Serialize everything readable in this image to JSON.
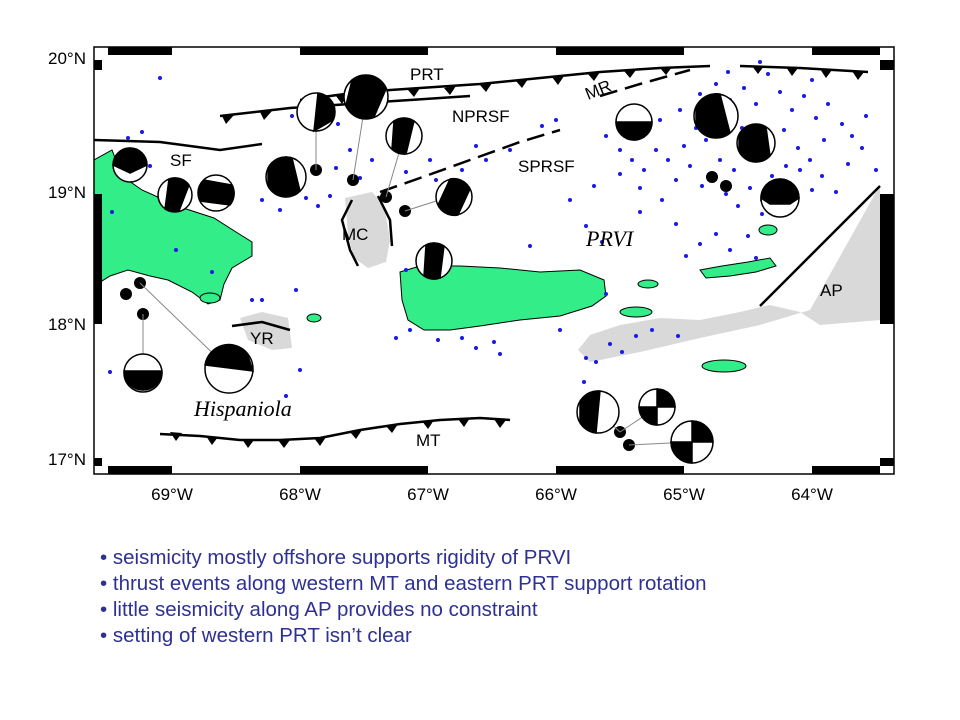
{
  "map": {
    "latitude_labels": [
      "20°N",
      "19°N",
      "18°N",
      "17°N"
    ],
    "longitude_labels": [
      "69°W",
      "68°W",
      "67°W",
      "66°W",
      "65°W",
      "64°W"
    ],
    "feature_labels": {
      "prt": "PRT",
      "nprsf": "NPRSF",
      "mr": "MR",
      "sprsf": "SPRSF",
      "sf": "SF",
      "mc": "MC",
      "yr": "YR",
      "mt": "MT",
      "ap": "AP"
    },
    "region_labels": {
      "prvi": "PRVI",
      "hispaniola": "Hispaniola"
    },
    "colors": {
      "land": "#33ee88",
      "shaded_region": "#d9d9d9",
      "seismicity": "#1a1ae6",
      "fault": "#000000"
    }
  },
  "notes": [
    "seismicity mostly offshore supports rigidity of PRVI",
    "thrust events along western MT and eastern PRT support rotation",
    "little seismicity along AP provides no constraint",
    "setting of western PRT isn’t clear"
  ]
}
